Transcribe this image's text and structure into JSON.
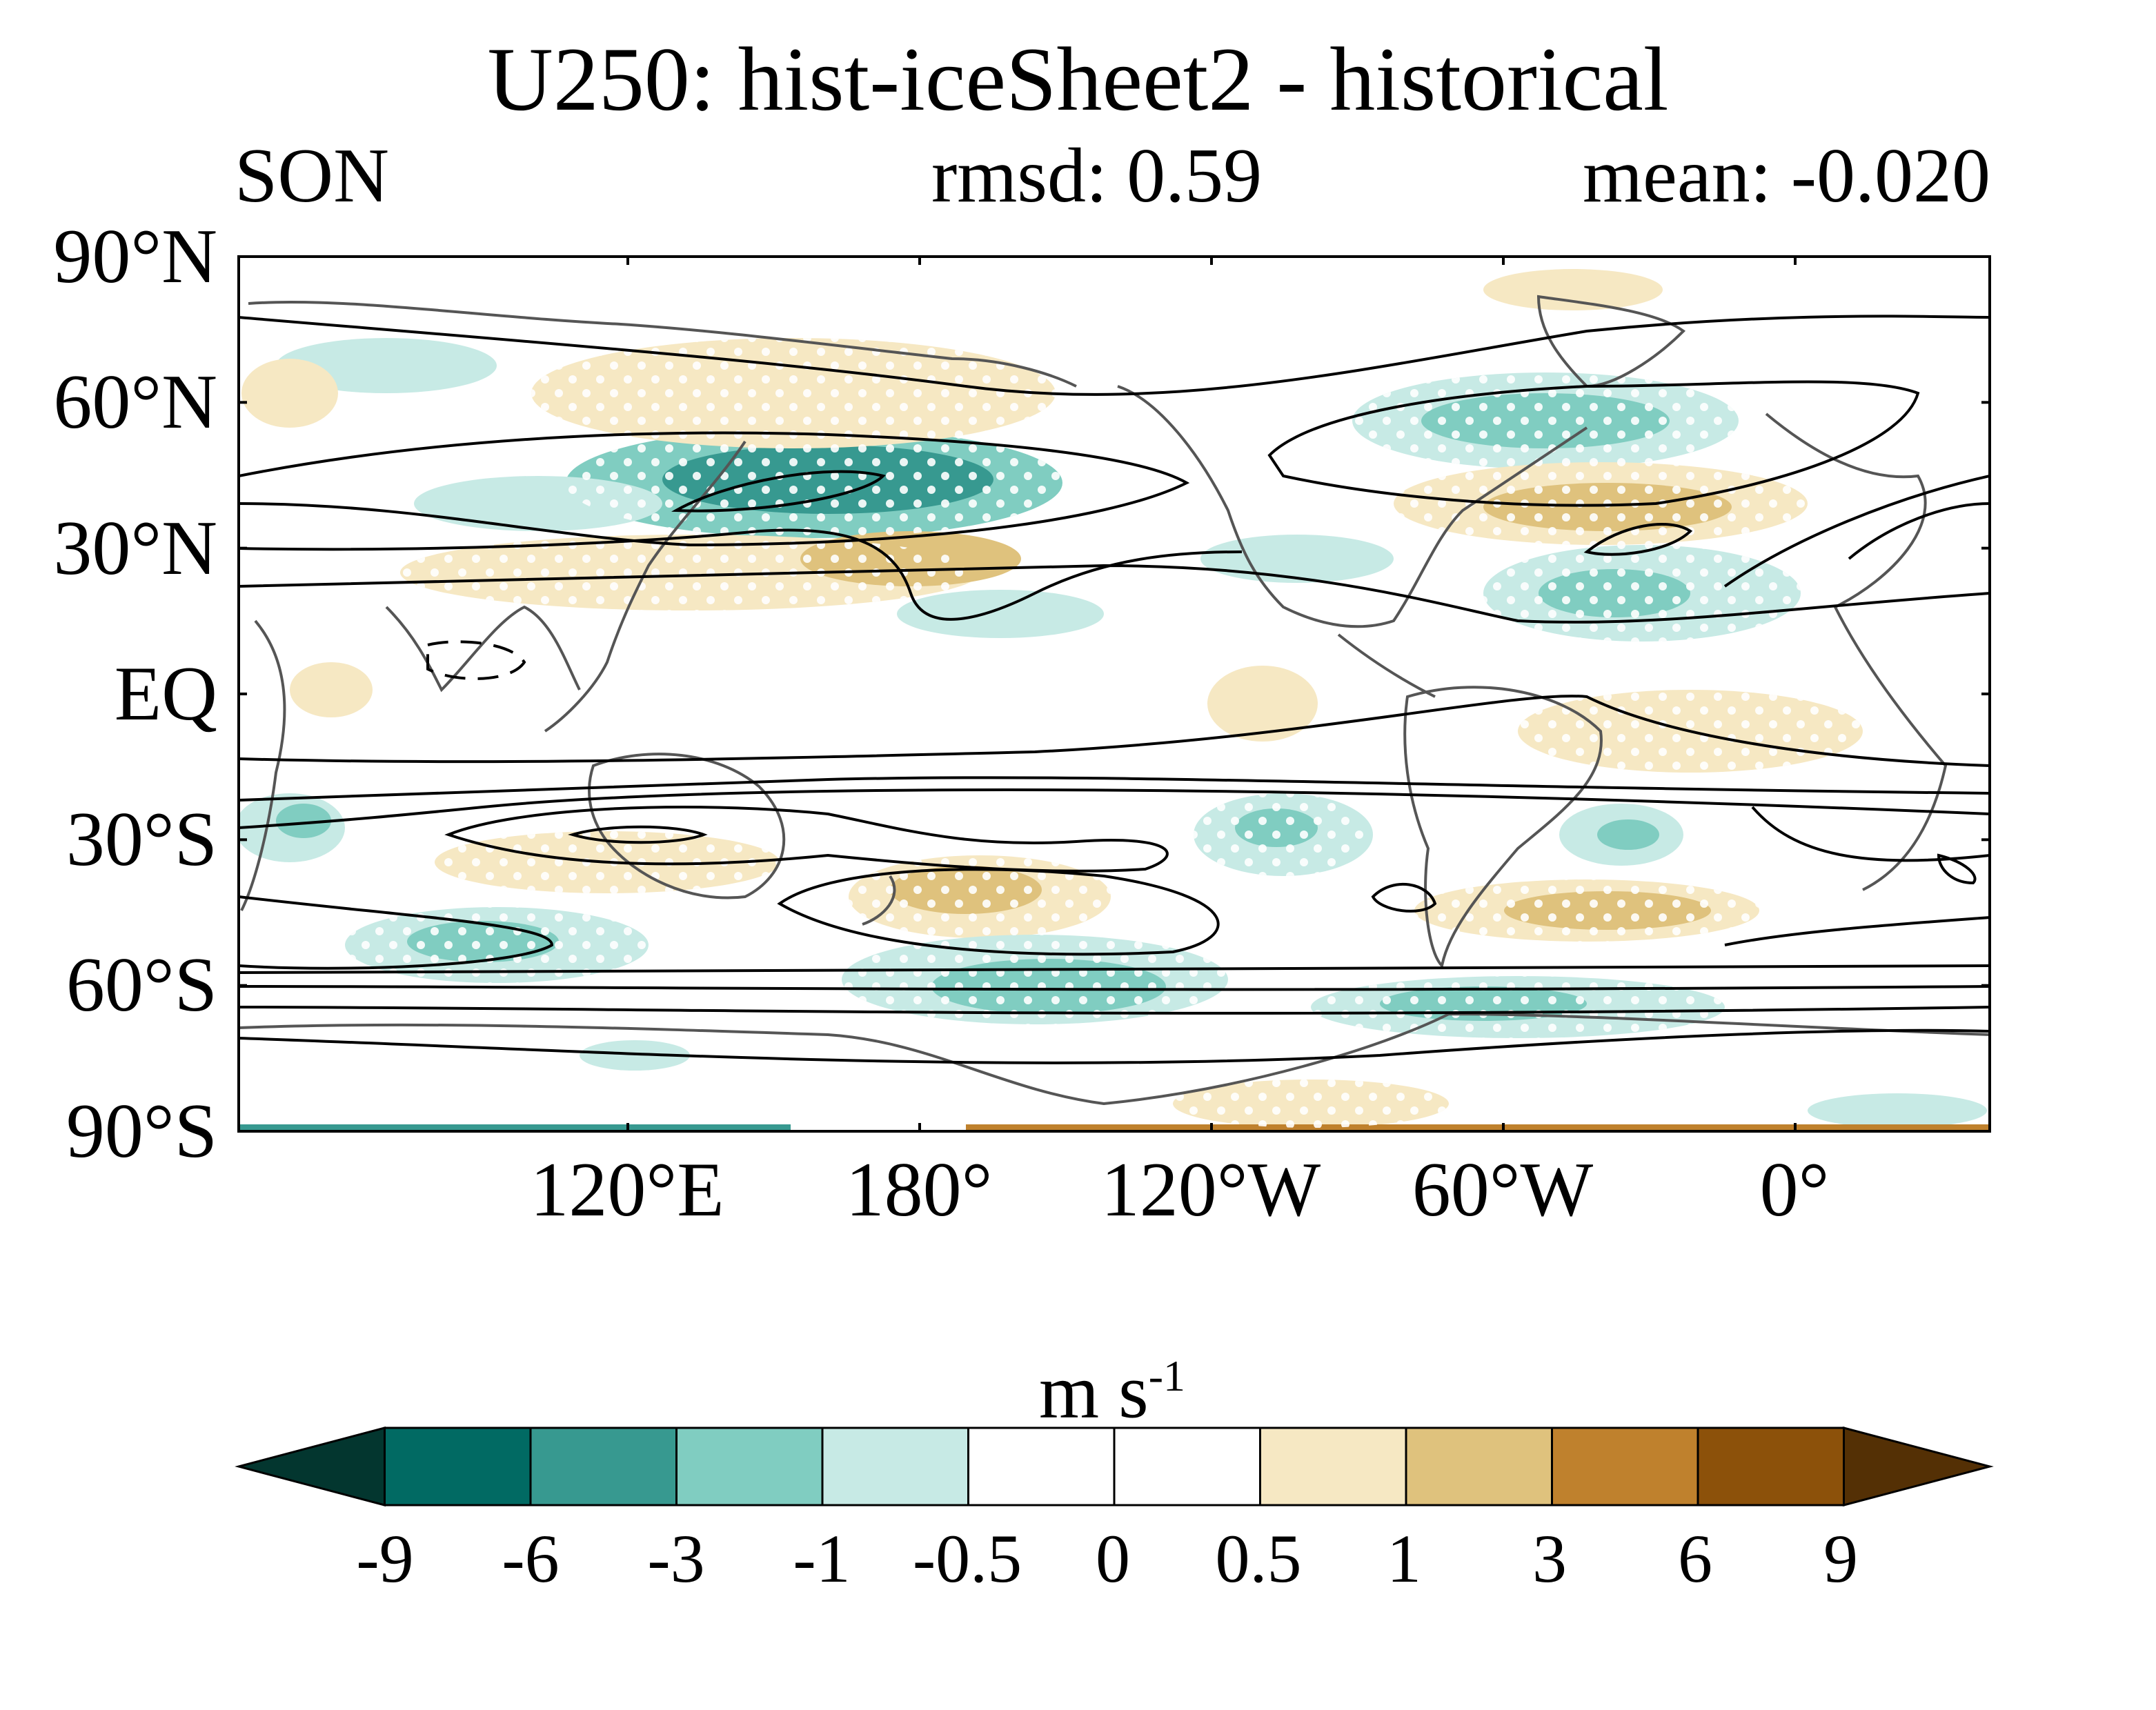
{
  "title": "U250: hist-iceSheet2 - historical",
  "season": "SON",
  "rmsd": "rmsd: 0.59",
  "mean": "mean: -0.020",
  "lat_labels": [
    "90°N",
    "60°N",
    "30°N",
    "EQ",
    "30°S",
    "60°S",
    "90°S"
  ],
  "lat_values": [
    90,
    60,
    30,
    0,
    -30,
    -60,
    -90
  ],
  "lon_labels": [
    "120°E",
    "180°",
    "120°W",
    "60°W",
    "0°"
  ],
  "lon_values": [
    120,
    180,
    240,
    300,
    360
  ],
  "map": {
    "lon_range": [
      40,
      400
    ],
    "lat_range": [
      -90,
      90
    ],
    "projection": "cylindrical equidistant",
    "shading_field": "U250 difference (hist-iceSheet2 - historical)",
    "contour_field": "climatological U250 (solid positive, dashed negative)",
    "stippling": "white dots over significant regions"
  },
  "colorbar": {
    "units_base": "m s",
    "units_exp": "-1",
    "ticks": [
      "-9",
      "-6",
      "-3",
      "-1",
      "-0.5",
      "0",
      "0.5",
      "1",
      "3",
      "6",
      "9"
    ],
    "colors": [
      "#03362f",
      "#016a63",
      "#379990",
      "#80cdc1",
      "#c7eae5",
      "#ffffff",
      "#ffffff",
      "#f6e8c3",
      "#dfc27d",
      "#bf812d",
      "#8c510a",
      "#543005"
    ]
  }
}
